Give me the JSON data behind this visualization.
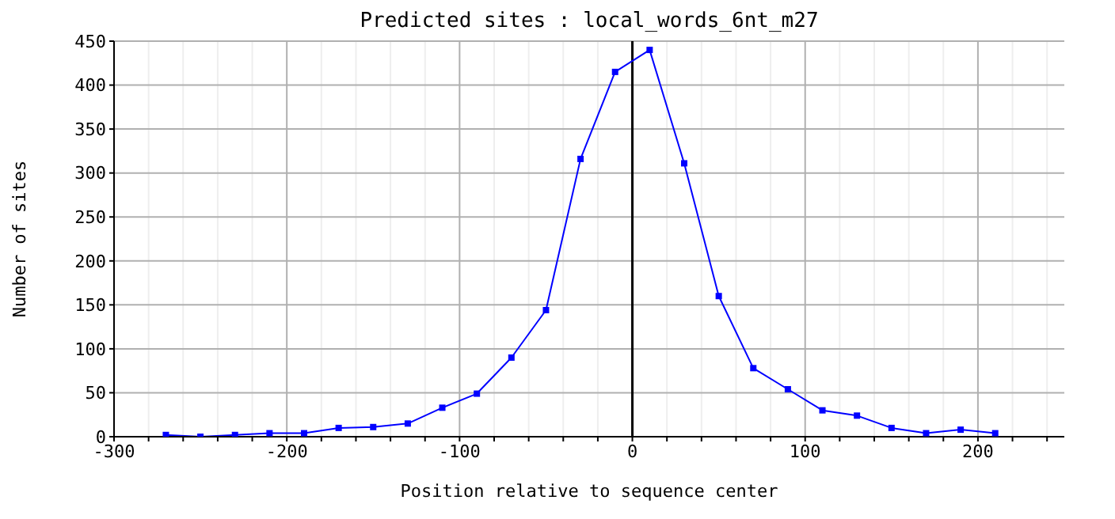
{
  "chart_data": {
    "type": "line",
    "title": "Predicted sites : local_words_6nt_m27",
    "xlabel": "Position relative to sequence center",
    "ylabel": "Number of sites",
    "x": [
      -270,
      -250,
      -230,
      -210,
      -190,
      -170,
      -150,
      -130,
      -110,
      -90,
      -70,
      -50,
      -30,
      -10,
      10,
      30,
      50,
      70,
      90,
      110,
      130,
      150,
      170,
      190,
      210
    ],
    "series": [
      {
        "color": "#0000ff",
        "values": [
          2,
          0,
          2,
          4,
          4,
          10,
          11,
          15,
          33,
          49,
          90,
          144,
          316,
          415,
          440,
          311,
          160,
          78,
          54,
          30,
          24,
          10,
          4,
          8,
          4
        ]
      }
    ],
    "xlim": [
      -300,
      250
    ],
    "xticks": [
      -300,
      {
        "value": -280,
        "label": null
      },
      {
        "value": -260,
        "label": null
      },
      {
        "value": -240,
        "label": null
      },
      {
        "value": -220,
        "label": null
      },
      -200,
      {
        "value": -180,
        "label": null
      },
      {
        "value": -160,
        "label": null
      },
      {
        "value": -140,
        "label": null
      },
      {
        "value": -120,
        "label": null
      },
      -100,
      {
        "value": -80,
        "label": null
      },
      {
        "value": -60,
        "label": null
      },
      {
        "value": -40,
        "label": null
      },
      {
        "value": -20,
        "label": null
      },
      0,
      {
        "value": 20,
        "label": null
      },
      {
        "value": 40,
        "label": null
      },
      {
        "value": 60,
        "label": null
      },
      {
        "value": 80,
        "label": null
      },
      100,
      {
        "value": 120,
        "label": null
      },
      {
        "value": 140,
        "label": null
      },
      {
        "value": 160,
        "label": null
      },
      {
        "value": 180,
        "label": null
      },
      200,
      {
        "value": 220,
        "label": null
      },
      {
        "value": 240,
        "label": null
      }
    ],
    "ylim": [
      0,
      450
    ],
    "yticks": [
      0,
      50,
      100,
      150,
      200,
      250,
      300,
      350,
      400,
      450
    ],
    "ref_lines": [
      {
        "axis": "x",
        "value": 0,
        "color": "#000000"
      }
    ],
    "grid": true,
    "marker": "square",
    "line_style": "solid",
    "legend": false
  }
}
